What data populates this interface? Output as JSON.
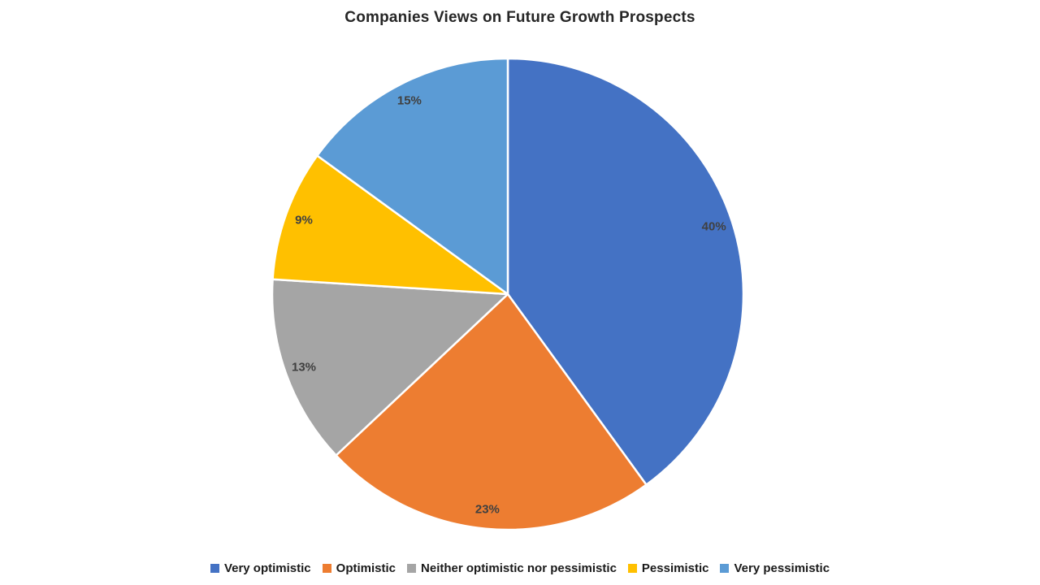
{
  "page": {
    "background_color": "#ffffff"
  },
  "chart_data": {
    "type": "pie",
    "title": "Companies Views on Future Growth Prospects",
    "title_color": "#262626",
    "data_label_color": "#404040",
    "legend_position": "bottom",
    "legend_text_color": "#1a1a1a",
    "slice_border_color": "#ffffff",
    "start_angle_deg": 0,
    "direction": "clockwise",
    "slices": [
      {
        "label": "Very optimistic",
        "value": 40,
        "display": "40%",
        "color": "#4472C4"
      },
      {
        "label": "Optimistic",
        "value": 23,
        "display": "23%",
        "color": "#ED7D31"
      },
      {
        "label": "Neither optimistic nor pessimistic",
        "value": 13,
        "display": "13%",
        "color": "#A5A5A5"
      },
      {
        "label": "Pessimistic",
        "value": 9,
        "display": "9%",
        "color": "#FFC000"
      },
      {
        "label": "Very pessimistic",
        "value": 15,
        "display": "15%",
        "color": "#5B9BD5"
      }
    ]
  }
}
